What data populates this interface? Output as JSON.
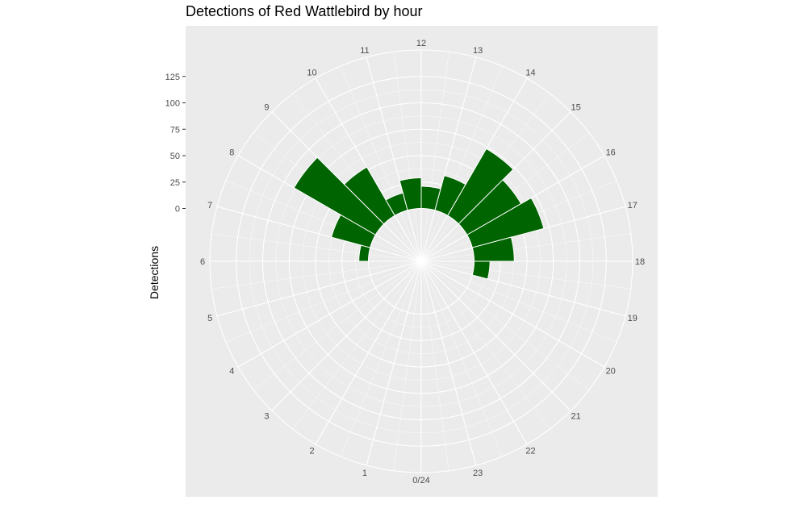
{
  "chart_data": {
    "type": "polar-bar",
    "title": "Detections of Red Wattlebird by hour",
    "ylabel": "Detections",
    "xlabel": "",
    "y_ticks": [
      0,
      25,
      50,
      75,
      100,
      125
    ],
    "ylim": [
      -50,
      150
    ],
    "theta_ticks": [
      "0/24",
      "1",
      "2",
      "3",
      "4",
      "5",
      "6",
      "7",
      "8",
      "9",
      "10",
      "11",
      "12",
      "13",
      "14",
      "15",
      "16",
      "17",
      "18",
      "19",
      "20",
      "21",
      "22",
      "23"
    ],
    "bin_width_hours": 1,
    "bars": [
      {
        "start": 6,
        "value": 9
      },
      {
        "start": 7,
        "value": 38
      },
      {
        "start": 8,
        "value": 89
      },
      {
        "start": 9,
        "value": 53
      },
      {
        "start": 10,
        "value": 17
      },
      {
        "start": 11,
        "value": 29
      },
      {
        "start": 12,
        "value": 21
      },
      {
        "start": 13,
        "value": 34
      },
      {
        "start": 14,
        "value": 73
      },
      {
        "start": 15,
        "value": 59
      },
      {
        "start": 16,
        "value": 70
      },
      {
        "start": 17,
        "value": 38
      },
      {
        "start": 18,
        "value": 15
      }
    ],
    "bar_color": "#006400",
    "panel_background": "#ebebeb",
    "grid_color": "#ffffff"
  }
}
